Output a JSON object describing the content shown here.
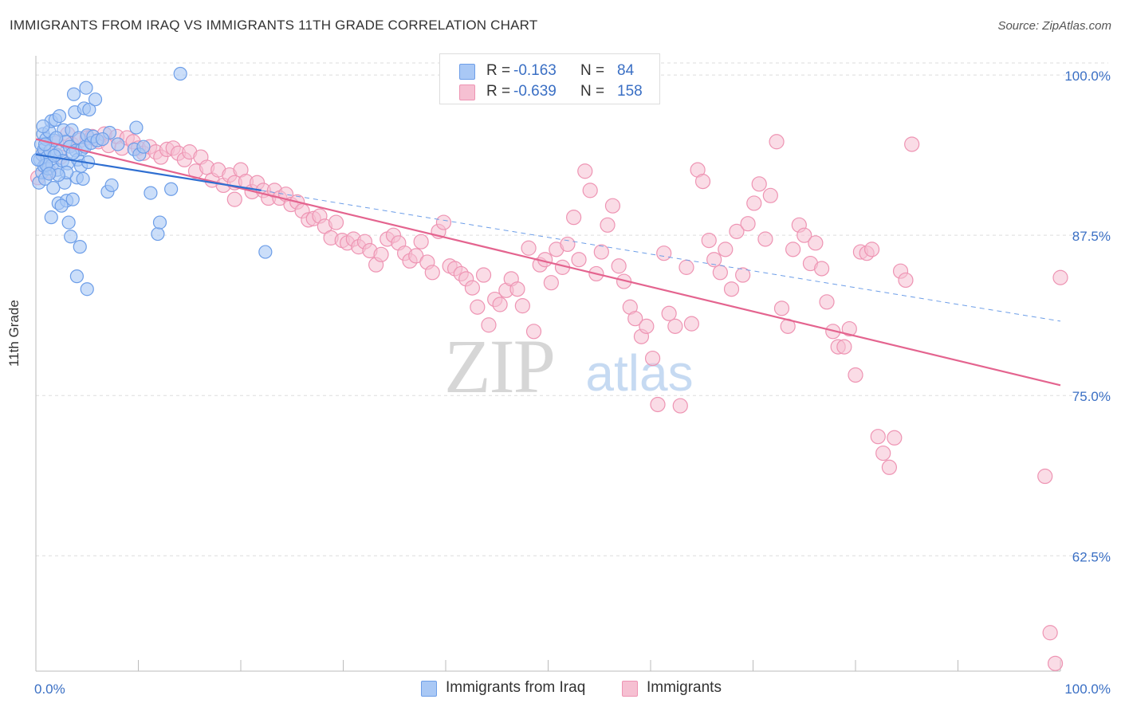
{
  "title": "IMMIGRANTS FROM IRAQ VS IMMIGRANTS 11TH GRADE CORRELATION CHART",
  "source": "Source: ZipAtlas.com",
  "watermark": {
    "zip": "ZIP",
    "atlas": "atlas"
  },
  "colors": {
    "blue_fill": "#a9c8f5",
    "blue_stroke": "#6d9ee8",
    "blue_line": "#2f6fd1",
    "pink_fill": "#f6c0d2",
    "pink_stroke": "#ee94b3",
    "pink_line": "#e4648f",
    "axis_text": "#3a6fc4",
    "grid": "#dddddd"
  },
  "legend": {
    "rows": [
      {
        "r_label": "R =",
        "r_value": "-0.163",
        "n_label": "N =",
        "n_value": "84"
      },
      {
        "r_label": "R =",
        "r_value": "-0.639",
        "n_label": "N =",
        "n_value": "158"
      }
    ]
  },
  "bottom_legend": {
    "series1": "Immigrants from Iraq",
    "series2": "Immigrants"
  },
  "chart_data": {
    "type": "scatter",
    "title": "IMMIGRANTS FROM IRAQ VS IMMIGRANTS 11TH GRADE CORRELATION CHART",
    "xlabel": "",
    "ylabel": "11th Grade",
    "xlim": [
      0,
      100
    ],
    "ylim": [
      53.5,
      101.5
    ],
    "x_tick_labels": [
      "0.0%",
      "100.0%"
    ],
    "y_ticks": [
      100.0,
      87.5,
      75.0,
      62.5
    ],
    "y_tick_labels": [
      "100.0%",
      "87.5%",
      "75.0%",
      "62.5%"
    ],
    "grid": true,
    "legend_position": "top-center",
    "series": [
      {
        "name": "Immigrants from Iraq",
        "color": "#a9c8f5",
        "r": -0.163,
        "n": 84,
        "trend": {
          "x": [
            0,
            22
          ],
          "y": [
            93.8,
            91.0
          ]
        },
        "trend_extended": {
          "x": [
            22,
            100
          ],
          "y": [
            91.0,
            80.8
          ]
        },
        "points": [
          [
            0.3,
            91.6
          ],
          [
            0.4,
            93.4
          ],
          [
            0.5,
            94.6
          ],
          [
            0.6,
            92.4
          ],
          [
            0.6,
            93.8
          ],
          [
            0.7,
            95.4
          ],
          [
            0.8,
            94.2
          ],
          [
            0.8,
            92.9
          ],
          [
            0.9,
            91.9
          ],
          [
            1.0,
            95.0
          ],
          [
            1.1,
            93.6
          ],
          [
            1.2,
            92.7
          ],
          [
            1.3,
            95.6
          ],
          [
            1.4,
            94.1
          ],
          [
            1.5,
            96.4
          ],
          [
            1.6,
            93.0
          ],
          [
            1.7,
            91.2
          ],
          [
            1.8,
            94.9
          ],
          [
            1.9,
            96.5
          ],
          [
            2.0,
            93.8
          ],
          [
            2.1,
            92.6
          ],
          [
            2.2,
            90.0
          ],
          [
            2.3,
            96.8
          ],
          [
            2.4,
            94.1
          ],
          [
            2.6,
            93.3
          ],
          [
            2.7,
            95.7
          ],
          [
            2.8,
            91.6
          ],
          [
            2.9,
            94.8
          ],
          [
            3.0,
            90.2
          ],
          [
            3.1,
            93.1
          ],
          [
            3.2,
            88.5
          ],
          [
            3.3,
            94.4
          ],
          [
            3.4,
            87.4
          ],
          [
            3.5,
            95.7
          ],
          [
            3.6,
            90.3
          ],
          [
            3.7,
            98.5
          ],
          [
            3.8,
            97.1
          ],
          [
            3.9,
            94.1
          ],
          [
            4.0,
            92.0
          ],
          [
            4.1,
            93.4
          ],
          [
            4.2,
            95.1
          ],
          [
            4.3,
            86.6
          ],
          [
            4.4,
            92.9
          ],
          [
            4.5,
            94.2
          ],
          [
            4.6,
            91.9
          ],
          [
            4.7,
            97.4
          ],
          [
            4.8,
            94.4
          ],
          [
            4.9,
            99.0
          ],
          [
            5.0,
            95.3
          ],
          [
            5.1,
            93.2
          ],
          [
            5.2,
            97.3
          ],
          [
            5.4,
            94.7
          ],
          [
            5.6,
            95.2
          ],
          [
            5.8,
            98.1
          ],
          [
            6.0,
            94.9
          ],
          [
            7.0,
            90.9
          ],
          [
            7.2,
            95.5
          ],
          [
            7.4,
            91.4
          ],
          [
            9.6,
            94.2
          ],
          [
            9.8,
            95.9
          ],
          [
            10.1,
            93.8
          ],
          [
            11.2,
            90.8
          ],
          [
            11.9,
            87.6
          ],
          [
            12.1,
            88.5
          ],
          [
            13.2,
            91.1
          ],
          [
            14.1,
            100.1
          ],
          [
            22.4,
            86.2
          ],
          [
            1.0,
            93.0
          ],
          [
            2.0,
            95.1
          ],
          [
            3.0,
            92.4
          ],
          [
            4.0,
            84.3
          ],
          [
            5.0,
            83.3
          ],
          [
            1.5,
            88.9
          ],
          [
            2.5,
            89.8
          ],
          [
            0.7,
            96.0
          ],
          [
            1.8,
            93.7
          ],
          [
            2.2,
            92.2
          ],
          [
            3.6,
            93.9
          ],
          [
            0.2,
            93.4
          ],
          [
            0.9,
            94.6
          ],
          [
            1.3,
            92.3
          ],
          [
            6.5,
            95.0
          ],
          [
            8.0,
            94.6
          ],
          [
            10.5,
            94.4
          ]
        ]
      },
      {
        "name": "Immigrants",
        "color": "#f6c0d2",
        "r": -0.639,
        "n": 158,
        "trend": {
          "x": [
            0,
            100
          ],
          "y": [
            95.0,
            75.8
          ]
        },
        "points": [
          [
            0.2,
            92.0
          ],
          [
            0.8,
            93.7
          ],
          [
            1.3,
            92.5
          ],
          [
            2.0,
            94.7
          ],
          [
            2.4,
            93.6
          ],
          [
            3.1,
            95.4
          ],
          [
            3.5,
            94.6
          ],
          [
            4.3,
            94.9
          ],
          [
            5.0,
            95.1
          ],
          [
            5.5,
            95.2
          ],
          [
            6.1,
            94.8
          ],
          [
            6.7,
            95.4
          ],
          [
            7.1,
            94.5
          ],
          [
            7.9,
            95.2
          ],
          [
            8.4,
            94.3
          ],
          [
            8.9,
            95.1
          ],
          [
            9.5,
            94.8
          ],
          [
            10.0,
            94.3
          ],
          [
            10.5,
            93.9
          ],
          [
            11.1,
            94.4
          ],
          [
            11.7,
            94.0
          ],
          [
            12.2,
            93.6
          ],
          [
            12.8,
            94.2
          ],
          [
            13.4,
            94.3
          ],
          [
            13.9,
            93.9
          ],
          [
            14.5,
            93.4
          ],
          [
            15.0,
            94.0
          ],
          [
            15.6,
            92.5
          ],
          [
            16.1,
            93.6
          ],
          [
            16.7,
            92.8
          ],
          [
            17.2,
            91.8
          ],
          [
            17.8,
            92.6
          ],
          [
            18.3,
            91.4
          ],
          [
            18.9,
            92.2
          ],
          [
            19.4,
            91.6
          ],
          [
            19.4,
            90.3
          ],
          [
            20.0,
            92.6
          ],
          [
            20.5,
            91.7
          ],
          [
            21.1,
            90.9
          ],
          [
            21.6,
            91.6
          ],
          [
            22.2,
            91.0
          ],
          [
            22.7,
            90.4
          ],
          [
            23.3,
            91.0
          ],
          [
            23.8,
            90.4
          ],
          [
            24.4,
            90.7
          ],
          [
            24.9,
            89.9
          ],
          [
            25.5,
            90.1
          ],
          [
            26.0,
            89.4
          ],
          [
            26.6,
            88.7
          ],
          [
            27.1,
            88.8
          ],
          [
            27.7,
            89.0
          ],
          [
            28.2,
            88.2
          ],
          [
            28.8,
            87.3
          ],
          [
            29.3,
            88.5
          ],
          [
            29.9,
            87.1
          ],
          [
            30.4,
            86.9
          ],
          [
            31.0,
            87.2
          ],
          [
            31.5,
            86.6
          ],
          [
            32.1,
            87.0
          ],
          [
            32.6,
            86.3
          ],
          [
            33.2,
            85.2
          ],
          [
            33.7,
            86.0
          ],
          [
            34.3,
            87.2
          ],
          [
            34.9,
            87.5
          ],
          [
            35.4,
            86.9
          ],
          [
            36.0,
            86.1
          ],
          [
            36.5,
            85.5
          ],
          [
            37.1,
            85.9
          ],
          [
            37.6,
            87.0
          ],
          [
            38.2,
            85.4
          ],
          [
            38.7,
            84.6
          ],
          [
            39.3,
            87.8
          ],
          [
            39.8,
            88.5
          ],
          [
            40.4,
            85.1
          ],
          [
            40.9,
            84.9
          ],
          [
            41.5,
            84.5
          ],
          [
            42.0,
            84.1
          ],
          [
            42.6,
            83.4
          ],
          [
            43.1,
            81.9
          ],
          [
            43.7,
            84.4
          ],
          [
            44.2,
            80.5
          ],
          [
            44.8,
            82.5
          ],
          [
            45.3,
            82.1
          ],
          [
            45.9,
            83.2
          ],
          [
            46.4,
            84.1
          ],
          [
            47.0,
            83.3
          ],
          [
            47.5,
            82.0
          ],
          [
            48.1,
            86.5
          ],
          [
            48.6,
            80.0
          ],
          [
            49.2,
            85.2
          ],
          [
            49.7,
            85.6
          ],
          [
            50.3,
            83.8
          ],
          [
            50.8,
            86.4
          ],
          [
            51.4,
            85.0
          ],
          [
            51.9,
            86.8
          ],
          [
            52.5,
            88.9
          ],
          [
            53.0,
            85.6
          ],
          [
            53.6,
            92.5
          ],
          [
            54.1,
            91.0
          ],
          [
            54.7,
            84.5
          ],
          [
            55.2,
            86.2
          ],
          [
            55.8,
            88.3
          ],
          [
            56.3,
            89.8
          ],
          [
            56.9,
            85.1
          ],
          [
            57.4,
            83.9
          ],
          [
            58.0,
            81.9
          ],
          [
            58.5,
            81.0
          ],
          [
            59.1,
            79.6
          ],
          [
            59.6,
            80.4
          ],
          [
            60.2,
            77.9
          ],
          [
            60.7,
            74.3
          ],
          [
            61.3,
            86.1
          ],
          [
            61.8,
            81.4
          ],
          [
            62.4,
            80.4
          ],
          [
            62.9,
            74.2
          ],
          [
            63.5,
            85.0
          ],
          [
            64.0,
            80.6
          ],
          [
            64.6,
            92.6
          ],
          [
            65.1,
            91.7
          ],
          [
            65.7,
            87.1
          ],
          [
            66.2,
            85.6
          ],
          [
            66.8,
            84.6
          ],
          [
            67.3,
            86.4
          ],
          [
            67.9,
            83.3
          ],
          [
            68.4,
            87.8
          ],
          [
            69.0,
            84.4
          ],
          [
            69.5,
            88.4
          ],
          [
            70.1,
            90.0
          ],
          [
            70.6,
            91.5
          ],
          [
            71.2,
            87.2
          ],
          [
            71.7,
            90.6
          ],
          [
            72.3,
            94.8
          ],
          [
            72.8,
            81.8
          ],
          [
            73.4,
            80.4
          ],
          [
            73.9,
            86.4
          ],
          [
            74.5,
            88.3
          ],
          [
            75.0,
            87.5
          ],
          [
            75.6,
            85.3
          ],
          [
            76.1,
            86.9
          ],
          [
            76.7,
            84.9
          ],
          [
            77.2,
            82.3
          ],
          [
            77.8,
            80.0
          ],
          [
            78.3,
            78.8
          ],
          [
            78.9,
            78.8
          ],
          [
            79.4,
            80.2
          ],
          [
            80.0,
            76.6
          ],
          [
            80.5,
            86.2
          ],
          [
            81.1,
            86.1
          ],
          [
            81.6,
            86.4
          ],
          [
            82.2,
            71.8
          ],
          [
            82.7,
            70.5
          ],
          [
            83.3,
            69.4
          ],
          [
            83.8,
            71.7
          ],
          [
            84.4,
            84.7
          ],
          [
            84.9,
            84.0
          ],
          [
            85.5,
            94.6
          ],
          [
            98.5,
            68.7
          ],
          [
            99.0,
            56.5
          ],
          [
            99.5,
            54.1
          ],
          [
            100.0,
            84.2
          ]
        ]
      }
    ]
  }
}
